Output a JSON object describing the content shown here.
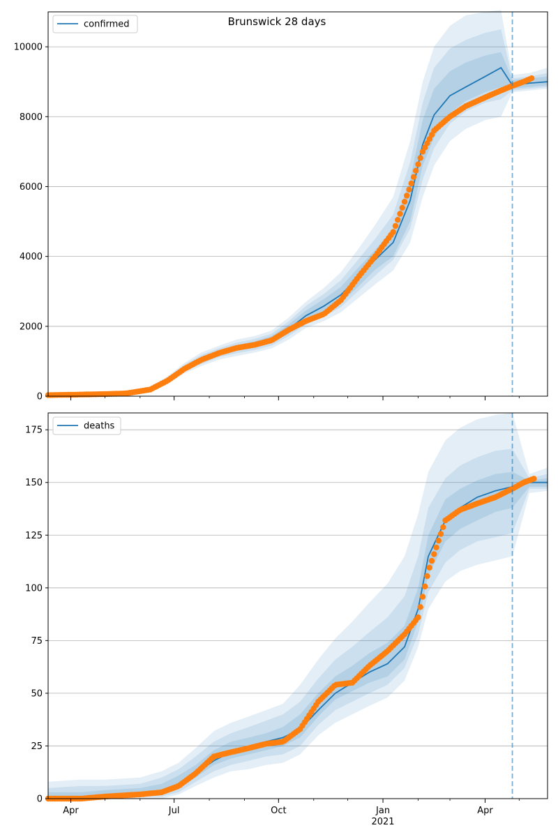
{
  "chart_data": [
    {
      "type": "line",
      "title": "Brunswick 28 days",
      "series": [
        {
          "name": "confirmed",
          "kind": "model_line",
          "color": "#1f77b4",
          "x": [
            "2020-03-12",
            "2020-05-01",
            "2020-05-20",
            "2020-06-10",
            "2020-06-25",
            "2020-07-10",
            "2020-07-25",
            "2020-08-10",
            "2020-08-25",
            "2020-09-10",
            "2020-09-25",
            "2020-10-10",
            "2020-10-25",
            "2020-11-10",
            "2020-11-25",
            "2020-12-10",
            "2020-12-25",
            "2021-01-10",
            "2021-01-25",
            "2021-02-05",
            "2021-02-15",
            "2021-03-01",
            "2021-03-15",
            "2021-04-01",
            "2021-04-15",
            "2021-04-25",
            "2021-05-10",
            "2021-05-26"
          ],
          "y": [
            30,
            60,
            80,
            200,
            450,
            800,
            1050,
            1250,
            1380,
            1480,
            1620,
            1920,
            2300,
            2580,
            2900,
            3400,
            3900,
            4400,
            5600,
            7200,
            8050,
            8600,
            8850,
            9150,
            9400,
            8900,
            8960,
            9000
          ]
        },
        {
          "name": "",
          "kind": "observed",
          "color": "#ff7f0e",
          "x": [
            "2020-03-12",
            "2020-04-01",
            "2020-05-01",
            "2020-05-20",
            "2020-06-10",
            "2020-06-25",
            "2020-07-10",
            "2020-07-25",
            "2020-08-10",
            "2020-08-25",
            "2020-09-10",
            "2020-09-25",
            "2020-10-10",
            "2020-10-25",
            "2020-11-10",
            "2020-11-25",
            "2020-12-10",
            "2020-12-25",
            "2021-01-10",
            "2021-01-25",
            "2021-02-05",
            "2021-02-15",
            "2021-03-01",
            "2021-03-15",
            "2021-04-01",
            "2021-04-15",
            "2021-04-25",
            "2021-05-05",
            "2021-05-12"
          ],
          "y": [
            30,
            40,
            60,
            80,
            190,
            440,
            780,
            1040,
            1240,
            1380,
            1470,
            1600,
            1900,
            2150,
            2350,
            2750,
            3400,
            4000,
            4700,
            6000,
            7000,
            7600,
            8000,
            8300,
            8550,
            8750,
            8880,
            9000,
            9100
          ]
        }
      ],
      "bands": [
        {
          "upper": [
            60,
            100,
            130,
            280,
            560,
            950,
            1250,
            1450,
            1620,
            1720,
            1880,
            2250,
            2700,
            3100,
            3550,
            4200,
            4900,
            5700,
            7300,
            9000,
            10000,
            10600,
            10900,
            11000,
            11050,
            9200,
            9250,
            9400
          ],
          "lower": [
            0,
            20,
            40,
            130,
            340,
            650,
            860,
            1050,
            1150,
            1250,
            1370,
            1620,
            1950,
            2150,
            2400,
            2800,
            3200,
            3600,
            4400,
            5700,
            6600,
            7300,
            7650,
            7900,
            8000,
            8700,
            8750,
            8800
          ]
        },
        {
          "upper": [
            50,
            85,
            115,
            250,
            520,
            900,
            1180,
            1380,
            1530,
            1640,
            1790,
            2140,
            2580,
            2930,
            3320,
            3900,
            4500,
            5200,
            6700,
            8400,
            9400,
            9950,
            10200,
            10400,
            10500,
            9100,
            9150,
            9250
          ],
          "lower": [
            5,
            30,
            50,
            150,
            380,
            700,
            920,
            1120,
            1230,
            1320,
            1450,
            1720,
            2050,
            2280,
            2550,
            3000,
            3450,
            3900,
            4800,
            6200,
            7100,
            7800,
            8150,
            8400,
            8500,
            8750,
            8800,
            8850
          ]
        },
        {
          "upper": [
            40,
            75,
            100,
            230,
            490,
            860,
            1120,
            1320,
            1460,
            1570,
            1720,
            2050,
            2450,
            2780,
            3130,
            3670,
            4180,
            4800,
            6200,
            7900,
            8800,
            9300,
            9550,
            9750,
            9850,
            9050,
            9100,
            9150
          ],
          "lower": [
            15,
            40,
            60,
            170,
            410,
            740,
            980,
            1180,
            1300,
            1390,
            1520,
            1790,
            2150,
            2380,
            2680,
            3130,
            3620,
            4000,
            5000,
            6600,
            7400,
            8100,
            8450,
            8700,
            8850,
            8800,
            8850,
            8900
          ]
        }
      ],
      "vline_x": "2021-04-25",
      "x_ticks": [
        {
          "x": "2020-04-01",
          "label": "Apr"
        },
        {
          "x": "2020-07-01",
          "label": "Jul"
        },
        {
          "x": "2020-10-01",
          "label": "Oct"
        },
        {
          "x": "2021-01-01",
          "label": "Jan"
        },
        {
          "x": "2021-04-01",
          "label": "Apr"
        }
      ],
      "y_ticks": [
        0,
        2000,
        4000,
        6000,
        8000,
        10000
      ],
      "xlim": [
        "2020-03-12",
        "2021-05-26"
      ],
      "ylim": [
        0,
        11000
      ],
      "grid": "y",
      "legend": "top-left"
    },
    {
      "type": "line",
      "title": "",
      "series": [
        {
          "name": "deaths",
          "kind": "model_line",
          "color": "#1f77b4",
          "x": [
            "2020-03-12",
            "2020-04-10",
            "2020-05-01",
            "2020-06-01",
            "2020-06-20",
            "2020-07-05",
            "2020-07-20",
            "2020-08-05",
            "2020-08-20",
            "2020-09-05",
            "2020-09-20",
            "2020-10-05",
            "2020-10-20",
            "2020-11-05",
            "2020-11-20",
            "2020-12-05",
            "2020-12-20",
            "2021-01-05",
            "2021-01-20",
            "2021-02-01",
            "2021-02-10",
            "2021-02-25",
            "2021-03-10",
            "2021-03-25",
            "2021-04-10",
            "2021-04-25",
            "2021-05-10",
            "2021-05-26"
          ],
          "y": [
            0,
            0,
            1,
            2,
            4,
            7,
            12,
            18,
            22,
            25,
            27,
            29,
            33,
            42,
            50,
            55,
            60,
            64,
            72,
            90,
            115,
            132,
            138,
            143,
            146,
            148,
            150,
            150
          ]
        },
        {
          "name": "",
          "kind": "observed",
          "color": "#ff7f0e",
          "x": [
            "2020-03-12",
            "2020-04-10",
            "2020-05-01",
            "2020-06-01",
            "2020-06-20",
            "2020-07-05",
            "2020-07-20",
            "2020-08-05",
            "2020-08-20",
            "2020-09-05",
            "2020-09-20",
            "2020-10-05",
            "2020-10-20",
            "2020-11-05",
            "2020-11-20",
            "2020-12-05",
            "2020-12-20",
            "2021-01-05",
            "2021-01-20",
            "2021-02-01",
            "2021-02-10",
            "2021-02-25",
            "2021-03-10",
            "2021-03-25",
            "2021-04-10",
            "2021-04-25",
            "2021-05-05",
            "2021-05-15"
          ],
          "y": [
            0,
            0,
            1,
            2,
            3,
            6,
            12,
            20,
            22,
            24,
            26,
            27,
            33,
            46,
            54,
            55,
            63,
            70,
            78,
            86,
            108,
            132,
            137,
            140,
            143,
            147,
            150,
            152
          ]
        }
      ],
      "bands": [
        {
          "upper": [
            8,
            9,
            9,
            10,
            13,
            17,
            24,
            32,
            36,
            39,
            42,
            45,
            54,
            66,
            76,
            84,
            93,
            102,
            115,
            135,
            155,
            170,
            176,
            180,
            182,
            183,
            154,
            157
          ],
          "lower": [
            0,
            0,
            0,
            0,
            0,
            2,
            6,
            10,
            13,
            14,
            16,
            17,
            21,
            30,
            36,
            40,
            44,
            48,
            56,
            72,
            90,
            103,
            108,
            111,
            113,
            115,
            145,
            146
          ]
        },
        {
          "upper": [
            5,
            6,
            6,
            7,
            10,
            14,
            20,
            27,
            31,
            34,
            37,
            40,
            46,
            57,
            66,
            72,
            79,
            86,
            96,
            115,
            138,
            152,
            158,
            162,
            165,
            166,
            152,
            154
          ],
          "lower": [
            0,
            0,
            0,
            1,
            1,
            3,
            8,
            13,
            16,
            18,
            20,
            21,
            25,
            35,
            42,
            46,
            50,
            54,
            62,
            78,
            98,
            112,
            118,
            122,
            124,
            126,
            147,
            147
          ]
        },
        {
          "upper": [
            3,
            3,
            4,
            5,
            7,
            11,
            16,
            23,
            27,
            29,
            31,
            34,
            40,
            50,
            58,
            63,
            69,
            74,
            82,
            100,
            125,
            142,
            147,
            151,
            154,
            155,
            151,
            152
          ],
          "lower": [
            0,
            0,
            0,
            1,
            2,
            5,
            10,
            16,
            19,
            21,
            23,
            25,
            29,
            39,
            47,
            51,
            55,
            58,
            66,
            84,
            106,
            122,
            128,
            132,
            136,
            138,
            148,
            148
          ]
        }
      ],
      "vline_x": "2021-04-25",
      "x_ticks": [
        {
          "x": "2020-04-01",
          "label": "Apr"
        },
        {
          "x": "2020-07-01",
          "label": "Jul"
        },
        {
          "x": "2020-10-01",
          "label": "Oct"
        },
        {
          "x": "2021-01-01",
          "label": "Jan"
        },
        {
          "x": "2021-04-01",
          "label": "Apr"
        }
      ],
      "x_year_label": {
        "x": "2021-01-01",
        "label": "2021"
      },
      "y_ticks": [
        0,
        25,
        50,
        75,
        100,
        125,
        150,
        175
      ],
      "xlim": [
        "2020-03-12",
        "2021-05-26"
      ],
      "ylim": [
        0,
        183
      ],
      "grid": "y",
      "legend": "top-left"
    }
  ]
}
